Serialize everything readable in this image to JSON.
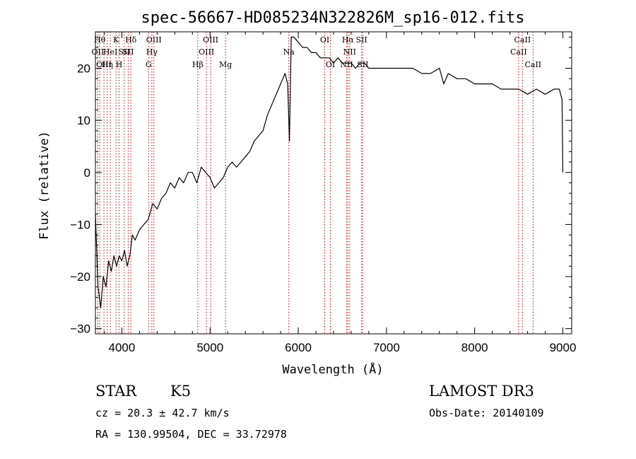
{
  "chart_data": {
    "type": "line",
    "title": "spec-56667-HD085234N322826M_sp16-012.fits",
    "xlabel": "Wavelength (Å)",
    "ylabel": "Flux (relative)",
    "xlim": [
      3700,
      9100
    ],
    "ylim": [
      -31,
      27
    ],
    "xticks": [
      4000,
      5000,
      6000,
      7000,
      8000,
      9000
    ],
    "yticks": [
      -30,
      -20,
      -10,
      0,
      10,
      20
    ],
    "xtick_labels": [
      "4000",
      "5000",
      "6000",
      "7000",
      "8000",
      "9000"
    ],
    "ytick_labels": [
      "−30",
      "−20",
      "−10",
      "0",
      "10",
      "20"
    ],
    "series": [
      {
        "name": "flux",
        "points": [
          [
            3700,
            -8
          ],
          [
            3730,
            -22
          ],
          [
            3760,
            -26
          ],
          [
            3790,
            -20
          ],
          [
            3820,
            -22
          ],
          [
            3850,
            -17
          ],
          [
            3880,
            -19
          ],
          [
            3910,
            -16
          ],
          [
            3940,
            -18
          ],
          [
            3970,
            -16
          ],
          [
            4000,
            -17
          ],
          [
            4030,
            -15
          ],
          [
            4060,
            -18
          ],
          [
            4090,
            -16
          ],
          [
            4120,
            -12
          ],
          [
            4150,
            -13
          ],
          [
            4200,
            -11
          ],
          [
            4250,
            -10
          ],
          [
            4300,
            -9
          ],
          [
            4350,
            -6
          ],
          [
            4400,
            -7
          ],
          [
            4450,
            -5
          ],
          [
            4500,
            -4
          ],
          [
            4550,
            -2
          ],
          [
            4600,
            -3
          ],
          [
            4650,
            -1
          ],
          [
            4700,
            -2
          ],
          [
            4750,
            0
          ],
          [
            4800,
            0
          ],
          [
            4850,
            -2
          ],
          [
            4900,
            1
          ],
          [
            4950,
            0
          ],
          [
            5000,
            -1
          ],
          [
            5050,
            -3
          ],
          [
            5100,
            -2
          ],
          [
            5150,
            -1
          ],
          [
            5200,
            1
          ],
          [
            5250,
            2
          ],
          [
            5300,
            1
          ],
          [
            5350,
            2
          ],
          [
            5400,
            3
          ],
          [
            5450,
            4
          ],
          [
            5500,
            6
          ],
          [
            5550,
            7
          ],
          [
            5600,
            8
          ],
          [
            5650,
            11
          ],
          [
            5700,
            13
          ],
          [
            5750,
            15
          ],
          [
            5800,
            17
          ],
          [
            5850,
            19
          ],
          [
            5880,
            17
          ],
          [
            5900,
            6
          ],
          [
            5920,
            26
          ],
          [
            5950,
            26
          ],
          [
            6000,
            25
          ],
          [
            6050,
            24
          ],
          [
            6100,
            24
          ],
          [
            6150,
            23
          ],
          [
            6200,
            23
          ],
          [
            6250,
            22
          ],
          [
            6300,
            22
          ],
          [
            6350,
            22
          ],
          [
            6400,
            21
          ],
          [
            6450,
            22
          ],
          [
            6500,
            21
          ],
          [
            6550,
            21
          ],
          [
            6600,
            21
          ],
          [
            6650,
            20
          ],
          [
            6700,
            21
          ],
          [
            6750,
            21
          ],
          [
            6800,
            20
          ],
          [
            6900,
            20
          ],
          [
            7000,
            20
          ],
          [
            7100,
            20
          ],
          [
            7200,
            20
          ],
          [
            7300,
            20
          ],
          [
            7400,
            19
          ],
          [
            7500,
            19
          ],
          [
            7600,
            20
          ],
          [
            7650,
            17
          ],
          [
            7700,
            19
          ],
          [
            7800,
            18
          ],
          [
            7900,
            18
          ],
          [
            8000,
            17
          ],
          [
            8100,
            17
          ],
          [
            8200,
            17
          ],
          [
            8300,
            16
          ],
          [
            8400,
            16
          ],
          [
            8500,
            16
          ],
          [
            8600,
            15
          ],
          [
            8700,
            16
          ],
          [
            8800,
            15
          ],
          [
            8900,
            16
          ],
          [
            8960,
            16
          ],
          [
            8990,
            14
          ],
          [
            9000,
            0
          ]
        ]
      }
    ],
    "spectral_lines": [
      {
        "wavelength": 3727,
        "label": "OII",
        "row": 2
      },
      {
        "wavelength": 3750,
        "label": "Hθ",
        "row": 1
      },
      {
        "wavelength": 3797,
        "label": "OIII",
        "row": 3
      },
      {
        "wavelength": 3835,
        "label": "Hη",
        "row": 3
      },
      {
        "wavelength": 3869,
        "label": "HeI",
        "row": 2
      },
      {
        "wavelength": 3934,
        "label": "K",
        "row": 1
      },
      {
        "wavelength": 3969,
        "label": "H",
        "row": 3
      },
      {
        "wavelength": 4026,
        "label": "SII",
        "row": 2
      },
      {
        "wavelength": 4072,
        "label": "SII",
        "row": 2
      },
      {
        "wavelength": 4102,
        "label": "Hδ",
        "row": 1
      },
      {
        "wavelength": 4304,
        "label": "G",
        "row": 3
      },
      {
        "wavelength": 4340,
        "label": "Hγ",
        "row": 2
      },
      {
        "wavelength": 4363,
        "label": "OIII",
        "row": 1
      },
      {
        "wavelength": 4861,
        "label": "Hβ",
        "row": 3
      },
      {
        "wavelength": 4959,
        "label": "OIII",
        "row": 2
      },
      {
        "wavelength": 5007,
        "label": "OIII",
        "row": 1
      },
      {
        "wavelength": 5175,
        "label": "Mg",
        "row": 3
      },
      {
        "wavelength": 5893,
        "label": "Na",
        "row": 2
      },
      {
        "wavelength": 6300,
        "label": "OI",
        "row": 1
      },
      {
        "wavelength": 6364,
        "label": "OI",
        "row": 3
      },
      {
        "wavelength": 6548,
        "label": "NII",
        "row": 3
      },
      {
        "wavelength": 6563,
        "label": "Hα",
        "row": 1
      },
      {
        "wavelength": 6583,
        "label": "NII",
        "row": 2
      },
      {
        "wavelength": 6717,
        "label": "SII",
        "row": 1
      },
      {
        "wavelength": 6731,
        "label": "SII",
        "row": 3
      },
      {
        "wavelength": 8498,
        "label": "CaII",
        "row": 2
      },
      {
        "wavelength": 8542,
        "label": "CaII",
        "row": 1
      },
      {
        "wavelength": 8662,
        "label": "CaII",
        "row": 3
      }
    ]
  },
  "info": {
    "object_class": "STAR",
    "subclass": "K5",
    "survey": "LAMOST DR3",
    "redshift": "cz = 20.3 ± 42.7 km/s",
    "obs_date": "Obs-Date: 20140109",
    "coords": "RA = 130.99504, DEC =  33.72978"
  },
  "colors": {
    "spectrum": "#000000",
    "line_marker": "#cc0000",
    "background": "#ffffff"
  }
}
